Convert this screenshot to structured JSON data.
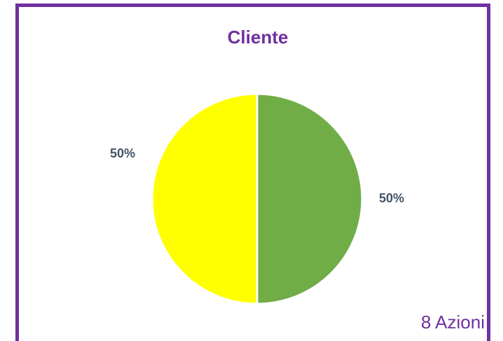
{
  "chart_data": {
    "type": "pie",
    "title": "Cliente",
    "values": [
      50,
      50
    ],
    "value_labels": [
      "50%",
      "50%"
    ],
    "colors": [
      "#70ad47",
      "#ffff00"
    ],
    "annotation": "8 Azioni"
  }
}
